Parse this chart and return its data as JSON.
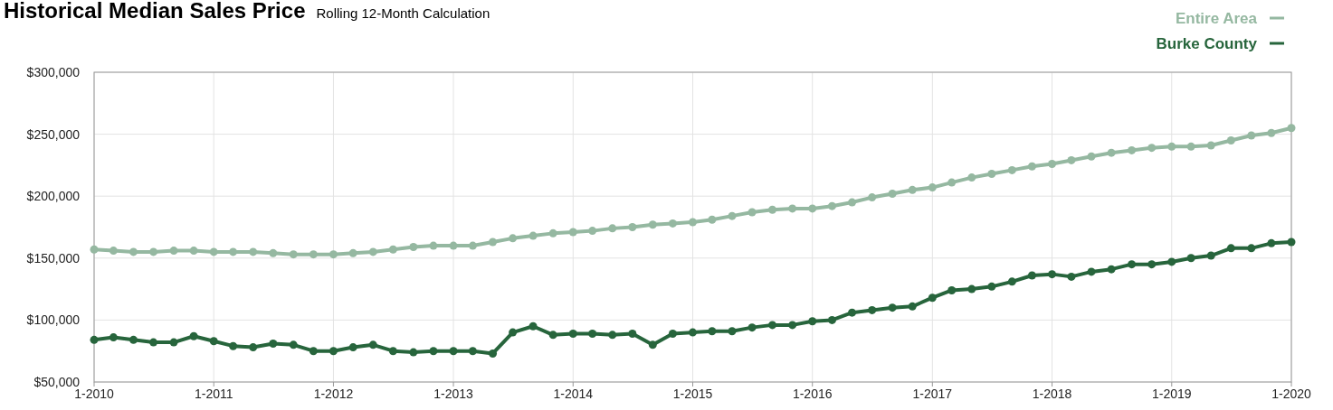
{
  "chart_data": {
    "type": "line",
    "title": "Historical Median Sales Price",
    "subtitle": "Rolling 12-Month Calculation",
    "x": [
      "2010-01",
      "2010-03",
      "2010-05",
      "2010-07",
      "2010-09",
      "2010-11",
      "2011-01",
      "2011-03",
      "2011-05",
      "2011-07",
      "2011-09",
      "2011-11",
      "2012-01",
      "2012-03",
      "2012-05",
      "2012-07",
      "2012-09",
      "2012-11",
      "2013-01",
      "2013-03",
      "2013-05",
      "2013-07",
      "2013-09",
      "2013-11",
      "2014-01",
      "2014-03",
      "2014-05",
      "2014-07",
      "2014-09",
      "2014-11",
      "2015-01",
      "2015-03",
      "2015-05",
      "2015-07",
      "2015-09",
      "2015-11",
      "2016-01",
      "2016-03",
      "2016-05",
      "2016-07",
      "2016-09",
      "2016-11",
      "2017-01",
      "2017-03",
      "2017-05",
      "2017-07",
      "2017-09",
      "2017-11",
      "2018-01",
      "2018-03",
      "2018-05",
      "2018-07",
      "2018-09",
      "2018-11",
      "2019-01",
      "2019-03",
      "2019-05",
      "2019-07",
      "2019-09",
      "2019-11",
      "2020-01"
    ],
    "series": [
      {
        "name": "Entire Area",
        "color": "#95b8a1",
        "values": [
          157000,
          156000,
          155000,
          155000,
          156000,
          156000,
          155000,
          155000,
          155000,
          154000,
          153000,
          153000,
          153000,
          154000,
          155000,
          157000,
          159000,
          160000,
          160000,
          160000,
          163000,
          166000,
          168000,
          170000,
          171000,
          172000,
          174000,
          175000,
          177000,
          178000,
          179000,
          181000,
          184000,
          187000,
          189000,
          190000,
          190000,
          192000,
          195000,
          199000,
          202000,
          205000,
          207000,
          211000,
          215000,
          218000,
          221000,
          224000,
          226000,
          229000,
          232000,
          235000,
          237000,
          239000,
          240000,
          240000,
          241000,
          245000,
          249000,
          251000,
          255000
        ]
      },
      {
        "name": "Burke County",
        "color": "#27653c",
        "values": [
          84000,
          86000,
          84000,
          82000,
          82000,
          87000,
          83000,
          79000,
          78000,
          81000,
          80000,
          75000,
          75000,
          78000,
          80000,
          75000,
          74000,
          75000,
          75000,
          75000,
          73000,
          90000,
          95000,
          88000,
          89000,
          89000,
          88000,
          89000,
          80000,
          89000,
          90000,
          91000,
          91000,
          94000,
          96000,
          96000,
          99000,
          100000,
          106000,
          108000,
          110000,
          111000,
          118000,
          124000,
          125000,
          127000,
          131000,
          136000,
          137000,
          135000,
          139000,
          141000,
          145000,
          145000,
          147000,
          150000,
          152000,
          158000,
          158000,
          162000,
          163000
        ]
      }
    ],
    "xlim": [
      "2010-01",
      "2020-01"
    ],
    "xticks": [
      {
        "value": "2010-01",
        "label": "1-2010"
      },
      {
        "value": "2011-01",
        "label": "1-2011"
      },
      {
        "value": "2012-01",
        "label": "1-2012"
      },
      {
        "value": "2013-01",
        "label": "1-2013"
      },
      {
        "value": "2014-01",
        "label": "1-2014"
      },
      {
        "value": "2015-01",
        "label": "1-2015"
      },
      {
        "value": "2016-01",
        "label": "1-2016"
      },
      {
        "value": "2017-01",
        "label": "1-2017"
      },
      {
        "value": "2018-01",
        "label": "1-2018"
      },
      {
        "value": "2019-01",
        "label": "1-2019"
      },
      {
        "value": "2020-01",
        "label": "1-2020"
      }
    ],
    "ylim": [
      50000,
      300000
    ],
    "yticks": [
      {
        "value": 50000,
        "label": "$50,000"
      },
      {
        "value": 100000,
        "label": "$100,000"
      },
      {
        "value": 150000,
        "label": "$150,000"
      },
      {
        "value": 200000,
        "label": "$200,000"
      },
      {
        "value": 250000,
        "label": "$250,000"
      },
      {
        "value": 300000,
        "label": "$300,000"
      }
    ],
    "grid": true,
    "legend": "top right",
    "marker": "circle",
    "line_style": "solid"
  }
}
